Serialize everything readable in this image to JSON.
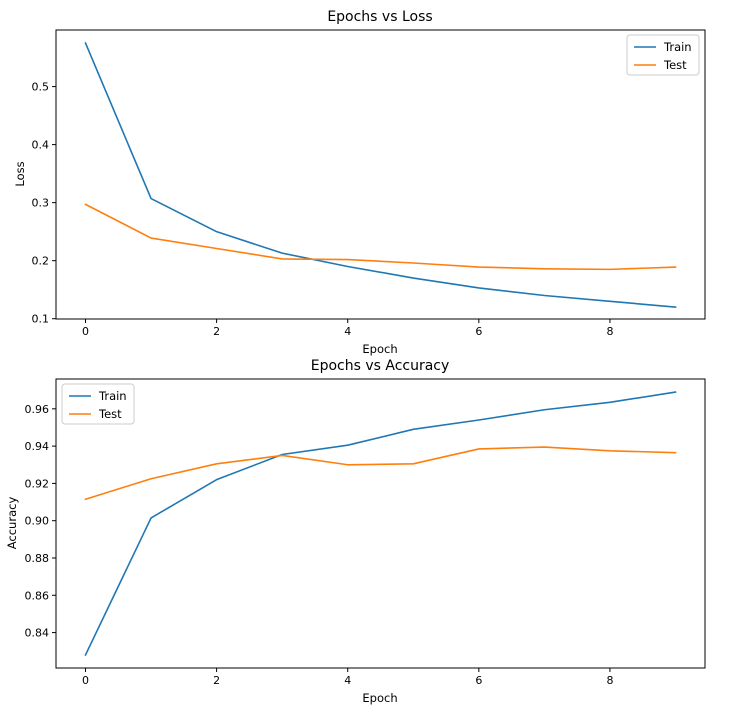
{
  "chart_data": [
    {
      "type": "line",
      "title": "Epochs vs Loss",
      "xlabel": "Epoch",
      "ylabel": "Loss",
      "xlim": [
        -0.45,
        9.45
      ],
      "ylim": [
        0.0995,
        0.5975
      ],
      "xticks": [
        0,
        2,
        4,
        6,
        8
      ],
      "yticks": [
        0.1,
        0.2,
        0.3,
        0.4,
        0.5
      ],
      "ytick_labels": [
        "0.1",
        "0.2",
        "0.3",
        "0.4",
        "0.5"
      ],
      "x": [
        0,
        1,
        2,
        3,
        4,
        5,
        6,
        7,
        8,
        9
      ],
      "series": [
        {
          "name": "Train",
          "color": "#1f77b4",
          "values": [
            0.575,
            0.307,
            0.25,
            0.213,
            0.19,
            0.17,
            0.153,
            0.14,
            0.13,
            0.12
          ]
        },
        {
          "name": "Test",
          "color": "#ff7f0e",
          "values": [
            0.297,
            0.239,
            0.221,
            0.203,
            0.202,
            0.196,
            0.189,
            0.186,
            0.185,
            0.189
          ]
        }
      ],
      "legend": "top-right",
      "grid": false
    },
    {
      "type": "line",
      "title": "Epochs vs Accuracy",
      "xlabel": "Epoch",
      "ylabel": "Accuracy",
      "xlim": [
        -0.45,
        9.45
      ],
      "ylim": [
        0.821,
        0.976
      ],
      "xticks": [
        0,
        2,
        4,
        6,
        8
      ],
      "yticks": [
        0.84,
        0.86,
        0.88,
        0.9,
        0.92,
        0.94,
        0.96
      ],
      "ytick_labels": [
        "0.84",
        "0.86",
        "0.88",
        "0.90",
        "0.92",
        "0.94",
        "0.96"
      ],
      "x": [
        0,
        1,
        2,
        3,
        4,
        5,
        6,
        7,
        8,
        9
      ],
      "series": [
        {
          "name": "Train",
          "color": "#1f77b4",
          "values": [
            0.828,
            0.9015,
            0.922,
            0.9355,
            0.9405,
            0.949,
            0.954,
            0.9595,
            0.9635,
            0.969
          ]
        },
        {
          "name": "Test",
          "color": "#ff7f0e",
          "values": [
            0.9115,
            0.9225,
            0.9305,
            0.935,
            0.93,
            0.9305,
            0.9385,
            0.9395,
            0.9375,
            0.9365
          ]
        }
      ],
      "legend": "top-left",
      "grid": false
    }
  ]
}
